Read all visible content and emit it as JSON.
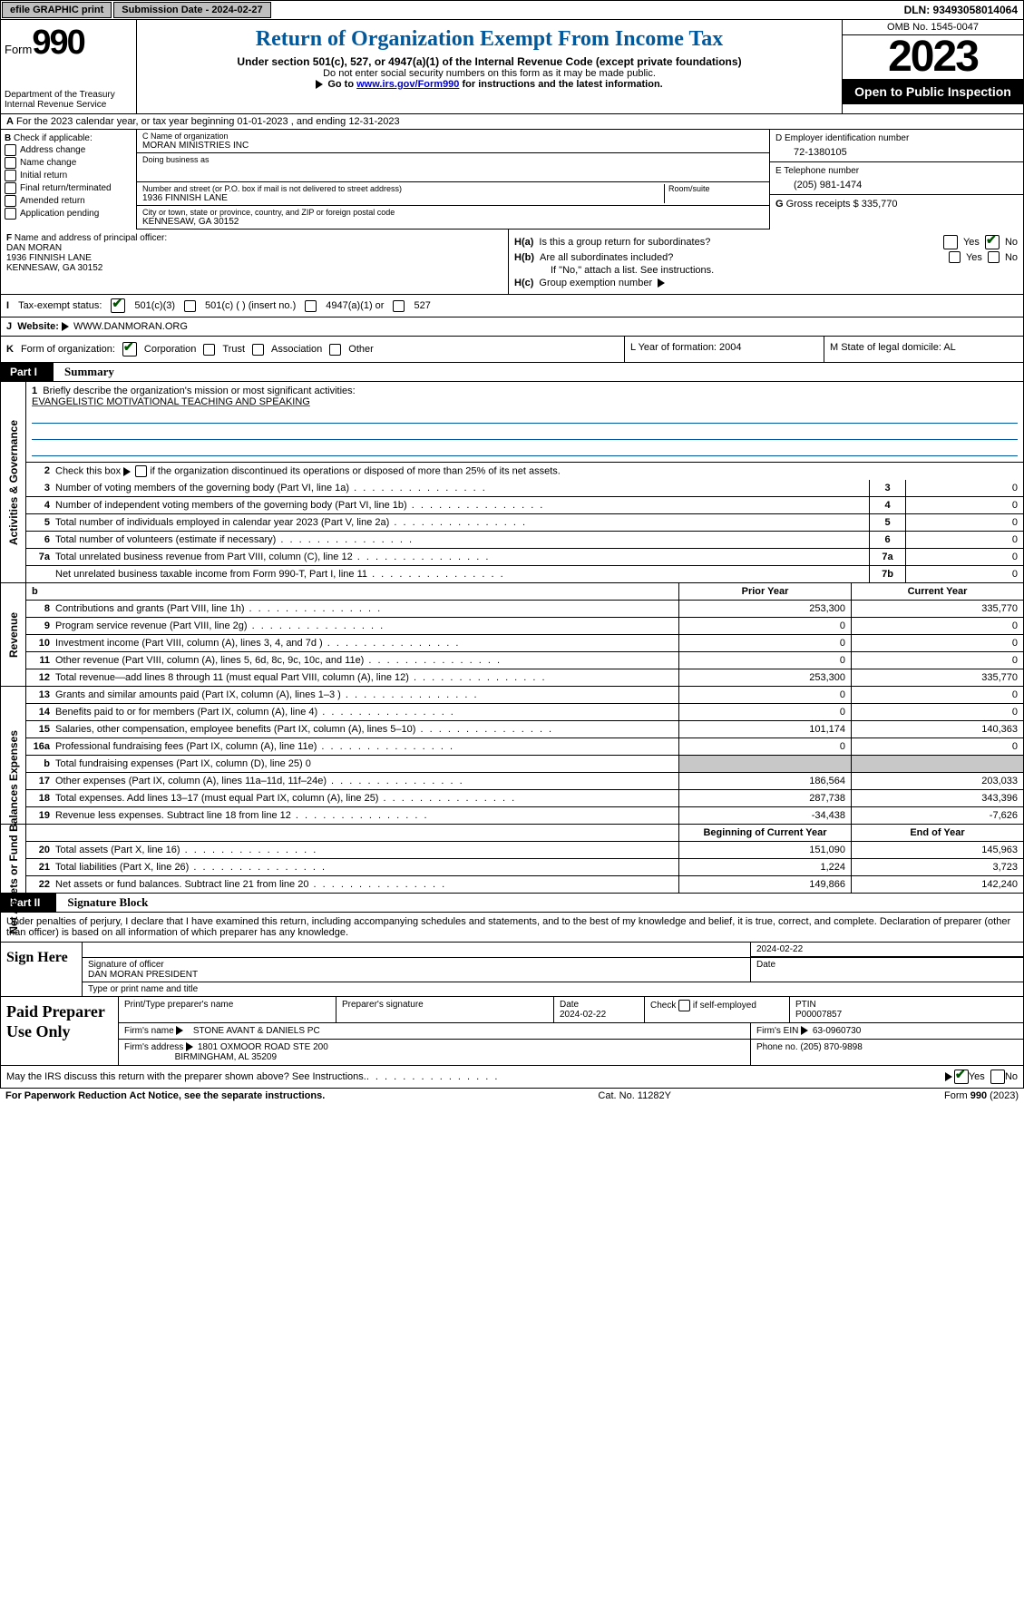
{
  "topbar": {
    "efile": "efile GRAPHIC print",
    "submission": "Submission Date - 2024-02-27",
    "dln": "DLN: 93493058014064"
  },
  "header": {
    "form_label": "Form",
    "form_num": "990",
    "dept": "Department of the Treasury\nInternal Revenue Service",
    "title": "Return of Organization Exempt From Income Tax",
    "sub1": "Under section 501(c), 527, or 4947(a)(1) of the Internal Revenue Code (except private foundations)",
    "sub2": "Do not enter social security numbers on this form as it may be made public.",
    "sub3_pre": "Go to ",
    "sub3_link": "www.irs.gov/Form990",
    "sub3_post": " for instructions and the latest information.",
    "omb": "OMB No. 1545-0047",
    "year": "2023",
    "open": "Open to Public Inspection"
  },
  "row_a": {
    "label": "A",
    "text": "For the 2023 calendar year, or tax year beginning 01-01-2023    , and ending 12-31-2023"
  },
  "col_b": {
    "label": "B",
    "intro": "Check if applicable:",
    "items": [
      "Address change",
      "Name change",
      "Initial return",
      "Final return/terminated",
      "Amended return",
      "Application pending"
    ]
  },
  "col_c": {
    "name_lab": "C Name of organization",
    "name": "MORAN MINISTRIES INC",
    "dba_lab": "Doing business as",
    "dba": "",
    "street_lab": "Number and street (or P.O. box if mail is not delivered to street address)",
    "room_lab": "Room/suite",
    "street": "1936 FINNISH LANE",
    "city_lab": "City or town, state or province, country, and ZIP or foreign postal code",
    "city": "KENNESAW, GA  30152"
  },
  "col_de": {
    "d_lab": "D Employer identification number",
    "d_val": "72-1380105",
    "e_lab": "E Telephone number",
    "e_val": "(205) 981-1474",
    "g_lab": "G",
    "g_text": "Gross receipts $ 335,770"
  },
  "row_f": {
    "lab": "F",
    "text": "Name and address of principal officer:",
    "name": "DAN MORAN",
    "addr1": "1936 FINNISH LANE",
    "addr2": "KENNESAW, GA  30152"
  },
  "row_h": {
    "ha_lab": "H(a)",
    "ha_text": "Is this a group return for subordinates?",
    "hb_lab": "H(b)",
    "hb_text": "Are all subordinates included?",
    "hb_note": "If \"No,\" attach a list. See instructions.",
    "hc_lab": "H(c)",
    "hc_text": "Group exemption number",
    "yes": "Yes",
    "no": "No"
  },
  "row_i": {
    "lab": "I",
    "text": "Tax-exempt status:",
    "opt1": "501(c)(3)",
    "opt2": "501(c) (   ) (insert no.)",
    "opt3": "4947(a)(1) or",
    "opt4": "527"
  },
  "row_j": {
    "lab": "J",
    "text": "Website:",
    "val": "WWW.DANMORAN.ORG"
  },
  "row_k": {
    "lab": "K",
    "text": "Form of organization:",
    "opts": [
      "Corporation",
      "Trust",
      "Association",
      "Other"
    ]
  },
  "row_l": {
    "text": "L Year of formation: 2004"
  },
  "row_m": {
    "text": "M State of legal domicile: AL"
  },
  "part1": {
    "tag": "Part I",
    "title": "Summary",
    "mission_lab": "1",
    "mission_text": "Briefly describe the organization's mission or most significant activities:",
    "mission_val": "EVANGELISTIC MOTIVATIONAL TEACHING AND SPEAKING",
    "line2_num": "2",
    "line2": "Check this box       if the organization discontinued its operations or disposed of more than 25% of its net assets.",
    "gov_label": "Activities & Governance",
    "gov_rows": [
      {
        "n": "3",
        "t": "Number of voting members of the governing body (Part VI, line 1a)",
        "b": "3",
        "v": "0"
      },
      {
        "n": "4",
        "t": "Number of independent voting members of the governing body (Part VI, line 1b)",
        "b": "4",
        "v": "0"
      },
      {
        "n": "5",
        "t": "Total number of individuals employed in calendar year 2023 (Part V, line 2a)",
        "b": "5",
        "v": "0"
      },
      {
        "n": "6",
        "t": "Total number of volunteers (estimate if necessary)",
        "b": "6",
        "v": "0"
      },
      {
        "n": "7a",
        "t": "Total unrelated business revenue from Part VIII, column (C), line 12",
        "b": "7a",
        "v": "0"
      },
      {
        "n": "",
        "t": "Net unrelated business taxable income from Form 990-T, Part I, line 11",
        "b": "7b",
        "v": "0"
      }
    ]
  },
  "revenue": {
    "label": "Revenue",
    "hdr_b": "b",
    "hdr_prior": "Prior Year",
    "hdr_curr": "Current Year",
    "rows": [
      {
        "n": "8",
        "t": "Contributions and grants (Part VIII, line 1h)",
        "p": "253,300",
        "c": "335,770"
      },
      {
        "n": "9",
        "t": "Program service revenue (Part VIII, line 2g)",
        "p": "0",
        "c": "0"
      },
      {
        "n": "10",
        "t": "Investment income (Part VIII, column (A), lines 3, 4, and 7d )",
        "p": "0",
        "c": "0"
      },
      {
        "n": "11",
        "t": "Other revenue (Part VIII, column (A), lines 5, 6d, 8c, 9c, 10c, and 11e)",
        "p": "0",
        "c": "0"
      },
      {
        "n": "12",
        "t": "Total revenue—add lines 8 through 11 (must equal Part VIII, column (A), line 12)",
        "p": "253,300",
        "c": "335,770"
      }
    ]
  },
  "expenses": {
    "label": "Expenses",
    "rows": [
      {
        "n": "13",
        "t": "Grants and similar amounts paid (Part IX, column (A), lines 1–3 )",
        "p": "0",
        "c": "0"
      },
      {
        "n": "14",
        "t": "Benefits paid to or for members (Part IX, column (A), line 4)",
        "p": "0",
        "c": "0"
      },
      {
        "n": "15",
        "t": "Salaries, other compensation, employee benefits (Part IX, column (A), lines 5–10)",
        "p": "101,174",
        "c": "140,363"
      },
      {
        "n": "16a",
        "t": "Professional fundraising fees (Part IX, column (A), line 11e)",
        "p": "0",
        "c": "0"
      },
      {
        "n": "b",
        "t": "Total fundraising expenses (Part IX, column (D), line 25) 0",
        "p": "",
        "c": "",
        "shade": true
      },
      {
        "n": "17",
        "t": "Other expenses (Part IX, column (A), lines 11a–11d, 11f–24e)",
        "p": "186,564",
        "c": "203,033"
      },
      {
        "n": "18",
        "t": "Total expenses. Add lines 13–17 (must equal Part IX, column (A), line 25)",
        "p": "287,738",
        "c": "343,396"
      },
      {
        "n": "19",
        "t": "Revenue less expenses. Subtract line 18 from line 12",
        "p": "-34,438",
        "c": "-7,626"
      }
    ]
  },
  "netassets": {
    "label": "Net Assets or Fund Balances",
    "hdr_beg": "Beginning of Current Year",
    "hdr_end": "End of Year",
    "rows": [
      {
        "n": "20",
        "t": "Total assets (Part X, line 16)",
        "p": "151,090",
        "c": "145,963"
      },
      {
        "n": "21",
        "t": "Total liabilities (Part X, line 26)",
        "p": "1,224",
        "c": "3,723"
      },
      {
        "n": "22",
        "t": "Net assets or fund balances. Subtract line 21 from line 20",
        "p": "149,866",
        "c": "142,240"
      }
    ]
  },
  "part2": {
    "tag": "Part II",
    "title": "Signature Block",
    "intro": "Under penalties of perjury, I declare that I have examined this return, including accompanying schedules and statements, and to the best of my knowledge and belief, it is true, correct, and complete. Declaration of preparer (other than officer) is based on all information of which preparer has any knowledge."
  },
  "sign": {
    "left": "Sign Here",
    "date": "2024-02-22",
    "sig_lab": "Signature of officer",
    "name": "DAN MORAN PRESIDENT",
    "type_lab": "Type or print name and title",
    "date_lab": "Date"
  },
  "prep": {
    "left": "Paid Preparer Use Only",
    "h1": "Print/Type preparer's name",
    "h2": "Preparer's signature",
    "h3": "Date",
    "h3v": "2024-02-22",
    "h4": "Check        if self-employed",
    "h5": "PTIN",
    "h5v": "P00007857",
    "firm_lab": "Firm's name",
    "firm": "STONE AVANT & DANIELS PC",
    "ein_lab": "Firm's EIN",
    "ein": "63-0960730",
    "addr_lab": "Firm's address",
    "addr1": "1801 OXMOOR ROAD STE 200",
    "addr2": "BIRMINGHAM, AL  35209",
    "phone_lab": "Phone no.",
    "phone": "(205) 870-9898"
  },
  "discuss": {
    "text": "May the IRS discuss this return with the preparer shown above? See Instructions.",
    "yes": "Yes",
    "no": "No"
  },
  "footer": {
    "left": "For Paperwork Reduction Act Notice, see the separate instructions.",
    "mid": "Cat. No. 11282Y",
    "right_pre": "Form ",
    "right_form": "990",
    "right_post": " (2023)"
  },
  "colors": {
    "title_blue": "#00599c",
    "link_blue": "#0000cc",
    "check_green": "#005500",
    "shade_gray": "#c8c8c8",
    "btn_gray": "#bfbfbf"
  }
}
